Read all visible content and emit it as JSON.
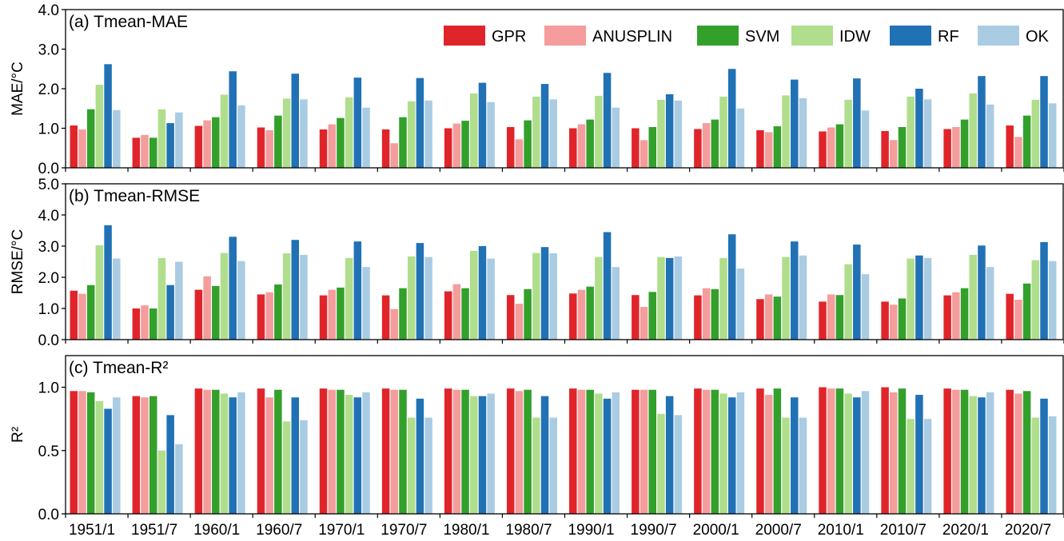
{
  "chart_data": {
    "type": "bar",
    "categories": [
      "1951/1",
      "1951/7",
      "1960/1",
      "1960/7",
      "1970/1",
      "1970/7",
      "1980/1",
      "1980/7",
      "1990/1",
      "1990/7",
      "2000/1",
      "2000/7",
      "2010/1",
      "2010/7",
      "2020/1",
      "2020/7"
    ],
    "legend": {
      "placement": "top-right"
    },
    "colors": {
      "GPR": "#e0252a",
      "ANUSPLIN": "#f59c9c",
      "SVM": "#33a02c",
      "IDW": "#b0de8c",
      "RF": "#2171b5",
      "OK": "#a9cce3"
    },
    "panels": [
      {
        "title": "(a) Tmean-MAE",
        "ylabel": "MAE/°C",
        "ylim": [
          0,
          4.0
        ],
        "yticks": [
          0,
          1,
          2,
          3,
          4
        ],
        "ytick_labels": [
          "0.0",
          "1.0",
          "2.0",
          "3.0",
          "4.0"
        ],
        "series": [
          {
            "name": "GPR",
            "values": [
              1.07,
              0.76,
              1.06,
              1.02,
              0.97,
              0.97,
              1.0,
              1.03,
              1.0,
              1.0,
              0.98,
              0.95,
              0.92,
              0.93,
              0.98,
              1.07
            ]
          },
          {
            "name": "ANUSPLIN",
            "values": [
              0.97,
              0.83,
              1.2,
              0.95,
              1.1,
              0.62,
              1.12,
              0.72,
              1.1,
              0.7,
              1.13,
              0.9,
              1.02,
              0.7,
              1.03,
              0.78
            ]
          },
          {
            "name": "SVM",
            "values": [
              1.48,
              0.76,
              1.28,
              1.32,
              1.26,
              1.28,
              1.19,
              1.2,
              1.22,
              1.03,
              1.22,
              1.05,
              1.1,
              1.03,
              1.22,
              1.32
            ]
          },
          {
            "name": "IDW",
            "values": [
              2.1,
              1.48,
              1.85,
              1.75,
              1.78,
              1.68,
              1.88,
              1.8,
              1.82,
              1.72,
              1.8,
              1.83,
              1.72,
              1.8,
              1.88,
              1.72
            ]
          },
          {
            "name": "RF",
            "values": [
              2.62,
              1.13,
              2.44,
              2.38,
              2.28,
              2.27,
              2.15,
              2.12,
              2.4,
              1.86,
              2.5,
              2.23,
              2.26,
              2.0,
              2.32,
              2.32
            ]
          },
          {
            "name": "OK",
            "values": [
              1.46,
              1.4,
              1.58,
              1.73,
              1.52,
              1.7,
              1.66,
              1.73,
              1.52,
              1.7,
              1.5,
              1.76,
              1.45,
              1.73,
              1.6,
              1.63
            ]
          }
        ]
      },
      {
        "title": "(b) Tmean-RMSE",
        "ylabel": "RMSE/°C",
        "ylim": [
          0,
          5.0
        ],
        "yticks": [
          0,
          1,
          2,
          3,
          4,
          5
        ],
        "ytick_labels": [
          "0.0",
          "1.0",
          "2.0",
          "3.0",
          "4.0",
          "5.0"
        ],
        "series": [
          {
            "name": "GPR",
            "values": [
              1.57,
              1.0,
              1.6,
              1.45,
              1.42,
              1.42,
              1.55,
              1.43,
              1.48,
              1.43,
              1.42,
              1.3,
              1.22,
              1.22,
              1.42,
              1.47
            ]
          },
          {
            "name": "ANUSPLIN",
            "values": [
              1.47,
              1.1,
              2.03,
              1.52,
              1.6,
              0.98,
              1.78,
              1.15,
              1.6,
              1.05,
              1.65,
              1.45,
              1.45,
              1.12,
              1.52,
              1.28
            ]
          },
          {
            "name": "SVM",
            "values": [
              1.75,
              1.0,
              1.72,
              1.77,
              1.67,
              1.65,
              1.65,
              1.62,
              1.7,
              1.53,
              1.62,
              1.38,
              1.43,
              1.32,
              1.65,
              1.8
            ]
          },
          {
            "name": "IDW",
            "values": [
              3.03,
              2.62,
              2.78,
              2.77,
              2.62,
              2.67,
              2.85,
              2.78,
              2.65,
              2.65,
              2.62,
              2.65,
              2.42,
              2.6,
              2.72,
              2.55
            ]
          },
          {
            "name": "RF",
            "values": [
              3.67,
              1.75,
              3.3,
              3.2,
              3.15,
              3.1,
              3.0,
              2.97,
              3.45,
              2.62,
              3.38,
              3.15,
              3.05,
              2.7,
              3.02,
              3.13
            ]
          },
          {
            "name": "OK",
            "values": [
              2.6,
              2.5,
              2.52,
              2.72,
              2.33,
              2.65,
              2.6,
              2.77,
              2.33,
              2.67,
              2.28,
              2.7,
              2.1,
              2.62,
              2.33,
              2.52
            ]
          }
        ]
      },
      {
        "title": "(c) Tmean-R²",
        "ylabel": "R²",
        "ylim": [
          0,
          1.25
        ],
        "yticks": [
          0,
          0.5,
          1.0
        ],
        "ytick_labels": [
          "0.0",
          "0.5",
          "1.0"
        ],
        "series": [
          {
            "name": "GPR",
            "values": [
              0.97,
              0.93,
              0.99,
              0.99,
              0.99,
              0.99,
              0.99,
              0.99,
              0.99,
              0.98,
              0.99,
              0.99,
              1.0,
              1.0,
              0.99,
              0.98
            ]
          },
          {
            "name": "ANUSPLIN",
            "values": [
              0.97,
              0.92,
              0.98,
              0.92,
              0.98,
              0.98,
              0.98,
              0.97,
              0.98,
              0.98,
              0.98,
              0.94,
              0.99,
              0.96,
              0.98,
              0.95
            ]
          },
          {
            "name": "SVM",
            "values": [
              0.96,
              0.93,
              0.98,
              0.98,
              0.98,
              0.98,
              0.98,
              0.98,
              0.98,
              0.98,
              0.98,
              0.99,
              0.99,
              0.99,
              0.98,
              0.97
            ]
          },
          {
            "name": "IDW",
            "values": [
              0.89,
              0.5,
              0.95,
              0.73,
              0.94,
              0.76,
              0.93,
              0.76,
              0.95,
              0.79,
              0.95,
              0.76,
              0.95,
              0.75,
              0.93,
              0.76
            ]
          },
          {
            "name": "RF",
            "values": [
              0.83,
              0.78,
              0.92,
              0.92,
              0.92,
              0.91,
              0.93,
              0.93,
              0.91,
              0.93,
              0.92,
              0.92,
              0.92,
              0.94,
              0.92,
              0.91
            ]
          },
          {
            "name": "OK",
            "values": [
              0.92,
              0.55,
              0.96,
              0.74,
              0.96,
              0.76,
              0.95,
              0.76,
              0.96,
              0.78,
              0.96,
              0.76,
              0.97,
              0.75,
              0.96,
              0.77
            ]
          }
        ]
      }
    ]
  }
}
